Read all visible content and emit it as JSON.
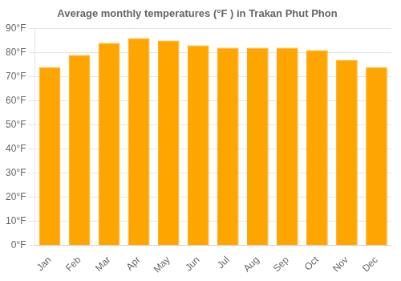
{
  "chart_data": {
    "type": "bar",
    "title": "Average monthly temperatures (°F ) in Trakan Phut Phon",
    "categories": [
      "Jan",
      "Feb",
      "Mar",
      "Apr",
      "May",
      "Jun",
      "Jul",
      "Aug",
      "Sep",
      "Oct",
      "Nov",
      "Dec"
    ],
    "values": [
      74,
      79,
      84,
      86,
      85,
      83,
      82,
      82,
      82,
      81,
      77,
      74
    ],
    "color": "#FFA500",
    "ylim": [
      0,
      90
    ],
    "yticks": [
      {
        "value": 0,
        "label": "0°F"
      },
      {
        "value": 10,
        "label": "10°F"
      },
      {
        "value": 20,
        "label": "20°F"
      },
      {
        "value": 30,
        "label": "30°F"
      },
      {
        "value": 40,
        "label": "40°F"
      },
      {
        "value": 50,
        "label": "50°F"
      },
      {
        "value": 60,
        "label": "60°F"
      },
      {
        "value": 70,
        "label": "70°F"
      },
      {
        "value": 80,
        "label": "80°F"
      },
      {
        "value": 90,
        "label": "90°F"
      }
    ],
    "grid": true
  }
}
